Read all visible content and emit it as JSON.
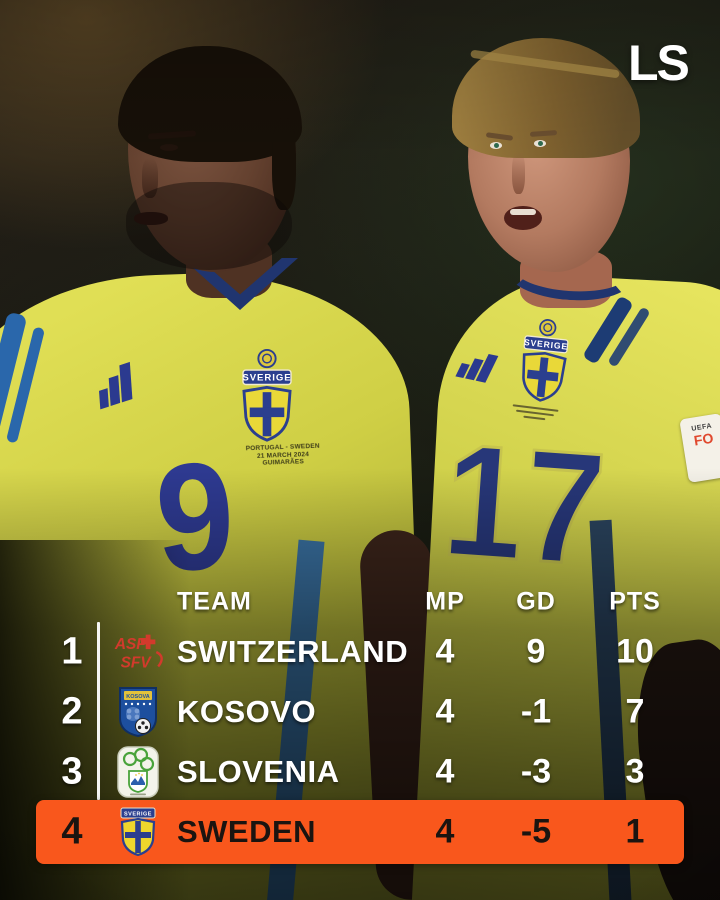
{
  "logo": {
    "text": "LS"
  },
  "table": {
    "headers": {
      "team": "TEAM",
      "mp": "MP",
      "gd": "GD",
      "pts": "PTS"
    },
    "rows": [
      {
        "pos": "1",
        "team": "SWITZERLAND",
        "mp": "4",
        "gd": "9",
        "pts": "10",
        "crest": "switzerland-crest",
        "highlighted": false
      },
      {
        "pos": "2",
        "team": "KOSOVO",
        "mp": "4",
        "gd": "-1",
        "pts": "7",
        "crest": "kosovo-crest",
        "highlighted": false
      },
      {
        "pos": "3",
        "team": "SLOVENIA",
        "mp": "4",
        "gd": "-3",
        "pts": "3",
        "crest": "slovenia-crest",
        "highlighted": false
      },
      {
        "pos": "4",
        "team": "SWEDEN",
        "mp": "4",
        "gd": "-5",
        "pts": "1",
        "crest": "sweden-crest",
        "highlighted": true
      }
    ]
  },
  "players": {
    "left": {
      "number": "9",
      "crest_text": "SVERIGE",
      "match_text": [
        "PORTUGAL - SWEDEN",
        "21 MARCH 2024",
        "GUIMARÃES"
      ]
    },
    "right": {
      "number": "17",
      "crest_text": "SVERIGE",
      "patch": {
        "line1": "UEFA",
        "line2": "FO"
      }
    }
  },
  "crest_labels": {
    "kosovo": "KOSOVA",
    "sweden": "SVERIGE",
    "switzerland_top": "ASF",
    "switzerland_bottom": "SFV"
  },
  "colors": {
    "highlight_orange": "#F9571C",
    "jersey_yellow": "#D6D544",
    "crest_blue": "#2B3F8F",
    "number_blue": "#2E3A91",
    "table_text": "#FFFFFF",
    "highlight_text": "#1B1410"
  }
}
